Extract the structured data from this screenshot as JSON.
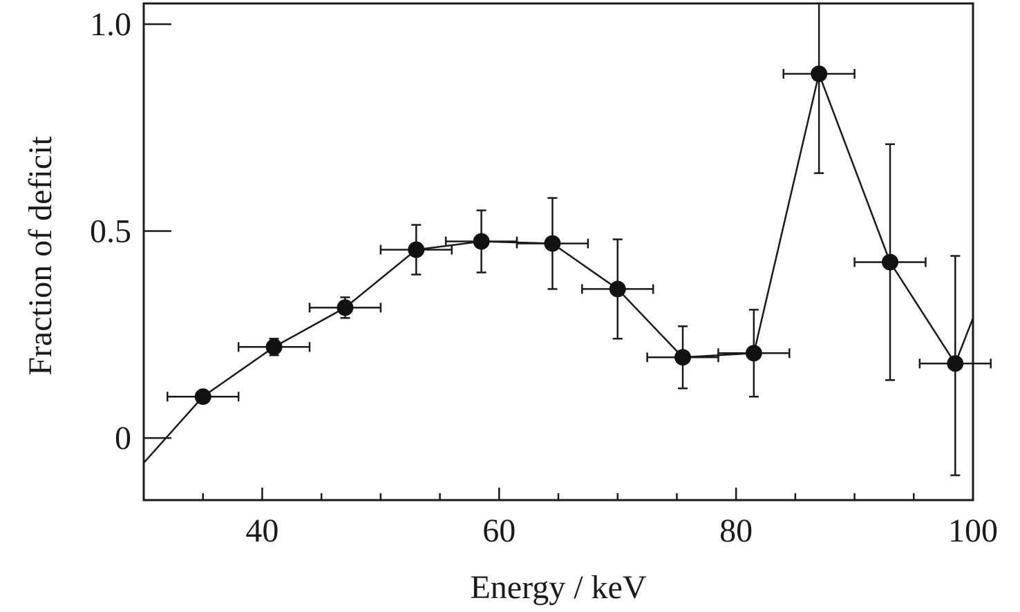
{
  "chart_data": {
    "type": "scatter",
    "title": "",
    "xlabel": "Energy / keV",
    "ylabel": "Fraction of deficit",
    "xlim": [
      30,
      100
    ],
    "ylim": [
      -0.15,
      1.05
    ],
    "x_ticks": [
      40,
      60,
      80,
      100
    ],
    "x_tick_labels": [
      "40",
      "60",
      "80",
      "100"
    ],
    "x_minor_ticks": [
      35,
      45,
      50,
      55,
      65,
      70,
      75,
      85,
      90,
      95
    ],
    "y_ticks": [
      0,
      0.5,
      1.0
    ],
    "y_tick_labels": [
      "0",
      "0.5",
      "1.0"
    ],
    "grid": false,
    "legend": "none",
    "series": [
      {
        "x": [
          35,
          41,
          47,
          53,
          58.5,
          64.5,
          70,
          75.5,
          81.5,
          87,
          93,
          98.5
        ],
        "y": [
          0.1,
          0.22,
          0.315,
          0.455,
          0.475,
          0.47,
          0.36,
          0.195,
          0.205,
          0.88,
          0.425,
          0.18
        ],
        "xerr": [
          3,
          3,
          3,
          3,
          3,
          3,
          3,
          3,
          3,
          3,
          3,
          3
        ],
        "yerr_low": [
          0.01,
          0.02,
          0.025,
          0.06,
          0.075,
          0.11,
          0.12,
          0.075,
          0.105,
          0.24,
          0.285,
          0.27
        ],
        "yerr_high": [
          0.01,
          0.02,
          0.025,
          0.06,
          0.075,
          0.11,
          0.12,
          0.075,
          0.105,
          0.17,
          0.285,
          0.26
        ]
      }
    ],
    "line_extension": {
      "start": [
        30,
        -0.06
      ],
      "end": [
        100,
        0.29
      ]
    }
  }
}
